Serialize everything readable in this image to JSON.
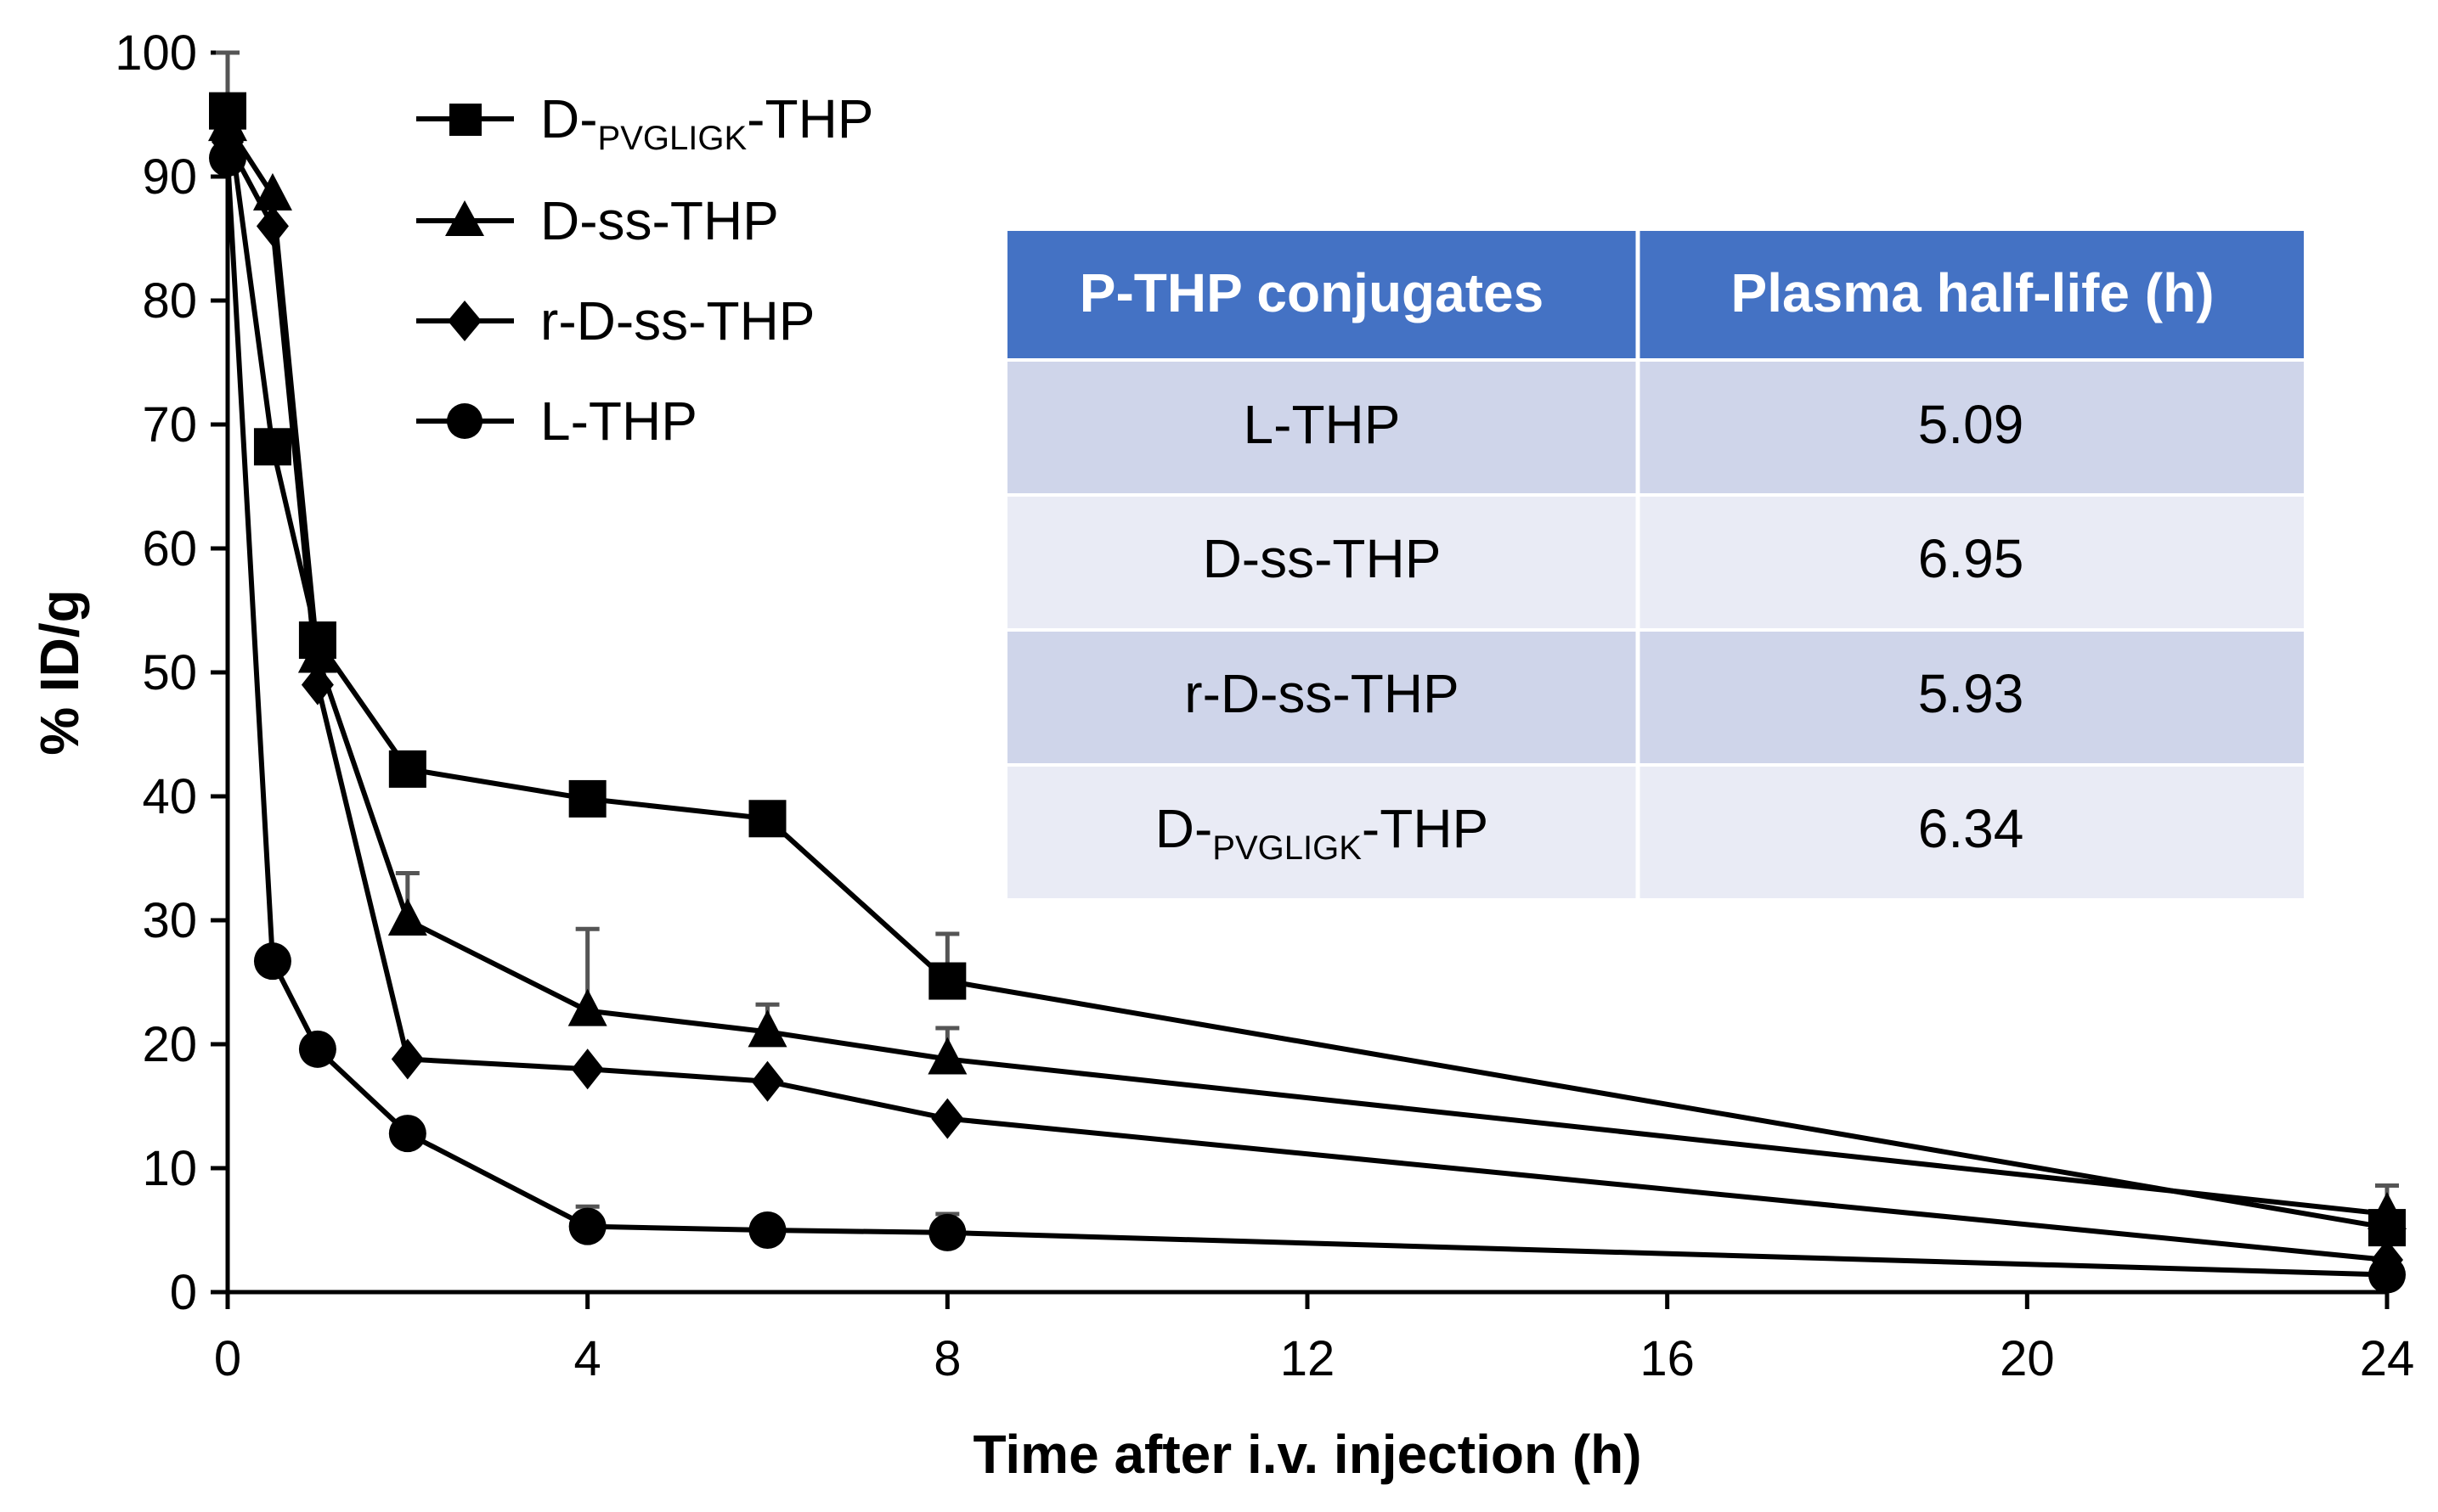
{
  "chart_data": {
    "type": "line",
    "xlabel": "Time after i.v. injection (h)",
    "ylabel": "% ID/g",
    "xlim": [
      0,
      24
    ],
    "ylim": [
      0,
      100
    ],
    "x_ticks": [
      0,
      4,
      8,
      12,
      16,
      20,
      24
    ],
    "y_ticks": [
      0,
      10,
      20,
      30,
      40,
      50,
      60,
      70,
      80,
      90,
      100
    ],
    "grid": false,
    "legend_placement": "top-left",
    "series": [
      {
        "name": "D-PVGLIGK-THP",
        "name_parts": {
          "prefix": "D-",
          "sub": "PVGLIGK",
          "suffix": "-THP"
        },
        "marker": "square",
        "x": [
          0,
          0.5,
          1,
          2,
          4,
          6,
          8,
          24
        ],
        "y": [
          95.3,
          68.2,
          52.6,
          42.2,
          39.8,
          38.2,
          25.1,
          5.2
        ],
        "err": [
          4.7,
          0,
          0,
          0,
          0,
          0,
          3.8,
          3.4
        ]
      },
      {
        "name": "D-ss-THP",
        "marker": "triangle",
        "x": [
          0,
          0.5,
          1,
          2,
          4,
          6,
          8,
          24
        ],
        "y": [
          94.1,
          88.5,
          51.2,
          30.0,
          22.7,
          21.0,
          18.8,
          6.3
        ],
        "err": [
          0,
          0,
          0,
          3.8,
          6.6,
          2.2,
          2.5,
          0
        ]
      },
      {
        "name": "r-D-ss-THP",
        "marker": "diamond",
        "x": [
          0,
          0.5,
          1,
          2,
          4,
          6,
          8,
          24
        ],
        "y": [
          92.8,
          86.0,
          49.0,
          18.8,
          18.0,
          17.0,
          14.0,
          2.6
        ],
        "err": [
          0,
          0,
          0,
          0,
          0,
          0,
          0,
          0
        ]
      },
      {
        "name": "L-THP",
        "marker": "circle",
        "x": [
          0,
          0.5,
          1,
          2,
          4,
          6,
          8,
          24
        ],
        "y": [
          91.5,
          26.7,
          19.6,
          12.8,
          5.3,
          5.0,
          4.8,
          1.4
        ],
        "err": [
          0,
          0,
          0,
          0,
          1.6,
          0,
          1.5,
          0
        ]
      }
    ]
  },
  "inset_table": {
    "headers": [
      "P-THP conjugates",
      "Plasma half-life (h)"
    ],
    "header_color": "#4472c4",
    "row_colors": [
      "#cfd5ea",
      "#e9ebf5"
    ],
    "rows": [
      {
        "conjugate": "L-THP",
        "half_life": "5.09"
      },
      {
        "conjugate": "D-ss-THP",
        "half_life": "6.95"
      },
      {
        "conjugate": "r-D-ss-THP",
        "half_life": "5.93"
      },
      {
        "conjugate_parts": {
          "prefix": "D-",
          "sub": "PVGLIGK",
          "suffix": "-THP"
        },
        "half_life": "6.34"
      }
    ]
  }
}
